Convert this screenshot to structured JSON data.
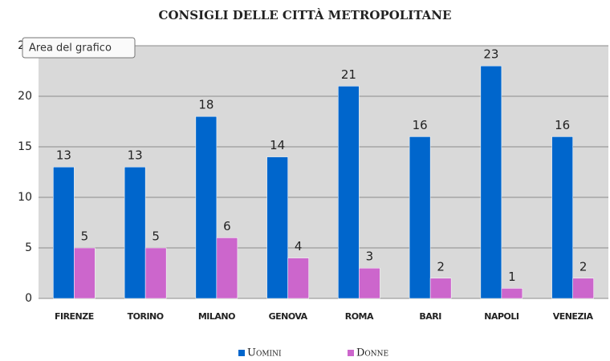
{
  "chart_data": {
    "type": "bar",
    "title": "CONSIGLI DELLE CITTÀ METROPOLITANE",
    "tooltip": "Area del grafico",
    "categories": [
      "FIRENZE",
      "TORINO",
      "MILANO",
      "GENOVA",
      "ROMA",
      "BARI",
      "NAPOLI",
      "VENEZIA"
    ],
    "series": [
      {
        "name": "Uomini",
        "color": "#0066cc",
        "values": [
          13,
          13,
          18,
          14,
          21,
          16,
          23,
          16
        ]
      },
      {
        "name": "Donne",
        "color": "#cc66cc",
        "values": [
          5,
          5,
          6,
          4,
          3,
          2,
          1,
          2
        ]
      }
    ],
    "ylim": [
      0,
      25
    ],
    "yticks": [
      0,
      5,
      10,
      15,
      20,
      25
    ],
    "grid": true,
    "legend": "bottom"
  }
}
